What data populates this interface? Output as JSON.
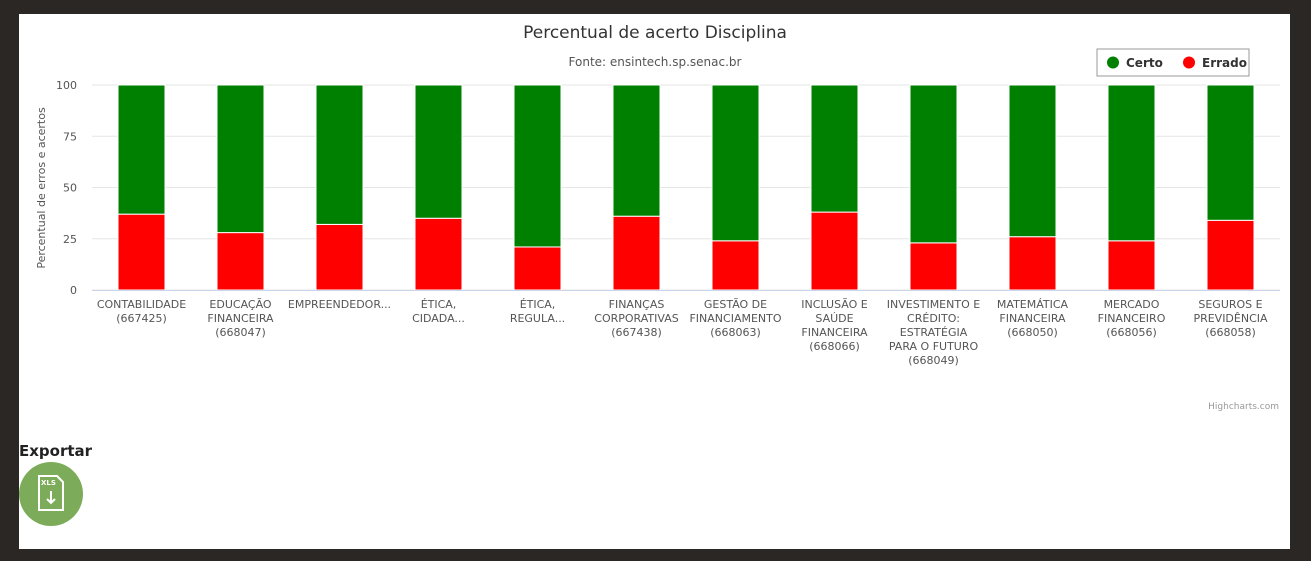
{
  "chart_data": {
    "type": "stacked_bar",
    "title": "Percentual de acerto Disciplina",
    "subtitle": "Fonte: ensintech.sp.senac.br",
    "y_label": "Percentual de erros e acertos",
    "categories": [
      "CONTABILIDADE (667425)",
      "EDUCAÇÃO FINANCEIRA (668047)",
      "EMPREENDEDOR...",
      "ÉTICA, CIDADA...",
      "ÉTICA, REGULA...",
      "FINANÇAS CORPORATIVAS (667438)",
      "GESTÃO DE FINANCIAMENTO (668063)",
      "INCLUSÃO E SAÚDE FINANCEIRA (668066)",
      "INVESTIMENTO E CRÉDITO: ESTRATÉGIA PARA O FUTURO (668049)",
      "MATEMÁTICA FINANCEIRA (668050)",
      "MERCADO FINANCEIRO (668056)",
      "SEGUROS E PREVIDÊNCIA (668058)"
    ],
    "series": [
      {
        "name": "Errado",
        "color": "#ff0000",
        "values": [
          37,
          28,
          32,
          35,
          21,
          36,
          24,
          38,
          23,
          26,
          24,
          34
        ]
      },
      {
        "name": "Certo",
        "color": "#008000",
        "values": [
          63,
          72,
          68,
          65,
          79,
          64,
          76,
          62,
          77,
          74,
          76,
          66
        ]
      }
    ],
    "legend_order": [
      1,
      0
    ],
    "legend_position": "top-right",
    "ylim": [
      0,
      100
    ],
    "yticks": [
      0,
      25,
      50,
      75,
      100
    ],
    "grid": true,
    "credits": "Highcharts.com"
  },
  "export": {
    "title": "Exportar",
    "icon_label": "XLS"
  }
}
